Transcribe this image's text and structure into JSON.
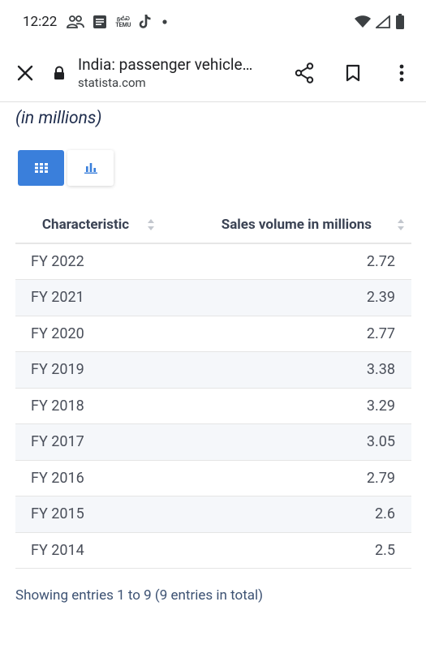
{
  "status_bar": {
    "time": "12:22",
    "icons_left": [
      "people-icon",
      "message-icon",
      "temu-icon",
      "tiktok-icon",
      "dot-icon"
    ],
    "temu_text_top": "ᵷᕍᏍ",
    "temu_text_bottom": "TEMU",
    "icons_right": [
      "wifi-icon",
      "signal-icon",
      "battery-icon"
    ]
  },
  "toolbar": {
    "title": "India: passenger vehicle…",
    "url": "statista.com"
  },
  "content": {
    "subtitle": "(in millions)",
    "view_toggle": {
      "active": "table"
    }
  },
  "table": {
    "headers": {
      "characteristic": "Characteristic",
      "value": "Sales volume in millions"
    },
    "rows": [
      {
        "label": "FY 2022",
        "value": "2.72"
      },
      {
        "label": "FY 2021",
        "value": "2.39"
      },
      {
        "label": "FY 2020",
        "value": "2.77"
      },
      {
        "label": "FY 2019",
        "value": "3.38"
      },
      {
        "label": "FY 2018",
        "value": "3.29"
      },
      {
        "label": "FY 2017",
        "value": "3.05"
      },
      {
        "label": "FY 2016",
        "value": "2.79"
      },
      {
        "label": "FY 2015",
        "value": "2.6"
      },
      {
        "label": "FY 2014",
        "value": "2.5"
      }
    ],
    "footer": "Showing entries 1 to 9 (9 entries in total)"
  },
  "colors": {
    "accent": "#3a7fdb",
    "stripe": "#f5f7fa",
    "subtitle": "#1f2d4d",
    "footer_text": "#3d5273"
  }
}
